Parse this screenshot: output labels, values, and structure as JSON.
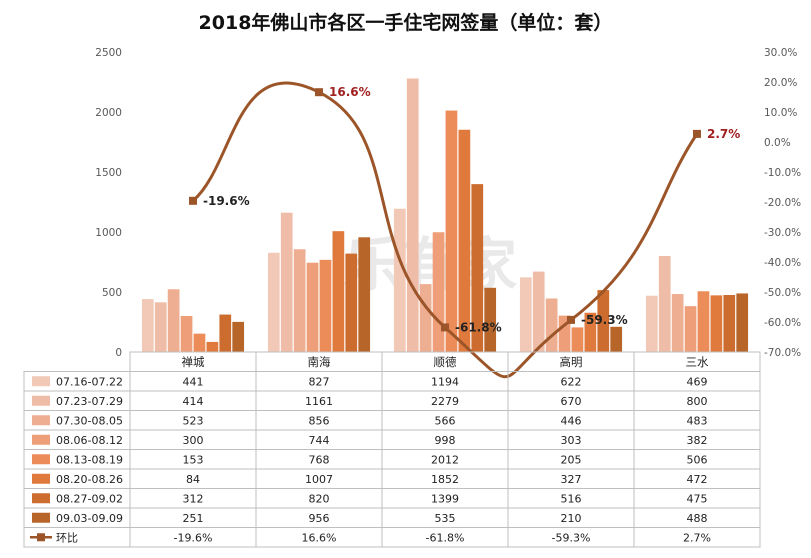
{
  "chart_data": {
    "type": "bar",
    "title": "2018年佛山市各区一手住宅网签量（单位：套）",
    "categories": [
      "禅城",
      "南海",
      "顺德",
      "高明",
      "三水"
    ],
    "y_left": {
      "ticks": [
        "0",
        "500",
        "1000",
        "1500",
        "2000",
        "2500"
      ],
      "ylim": [
        0,
        2500
      ]
    },
    "y_right": {
      "ticks": [
        "-70.0%",
        "-60.0%",
        "-50.0%",
        "-40.0%",
        "-30.0%",
        "-20.0%",
        "-10.0%",
        "0.0%",
        "10.0%",
        "20.0%",
        "30.0%"
      ],
      "ylim": [
        -70,
        30
      ]
    },
    "series": [
      {
        "name": "07.16-07.22",
        "color": "#f2c9b7",
        "values": [
          441,
          827,
          1194,
          622,
          469
        ]
      },
      {
        "name": "07.23-07.29",
        "color": "#efbca7",
        "values": [
          414,
          1161,
          2279,
          670,
          800
        ]
      },
      {
        "name": "07.30-08.05",
        "color": "#eeae92",
        "values": [
          523,
          856,
          566,
          446,
          483
        ]
      },
      {
        "name": "08.06-08.12",
        "color": "#ee9e78",
        "values": [
          300,
          744,
          998,
          303,
          382
        ]
      },
      {
        "name": "08.13-08.19",
        "color": "#ec8c58",
        "values": [
          153,
          768,
          2012,
          205,
          506
        ]
      },
      {
        "name": "08.20-08.26",
        "color": "#e07a3c",
        "values": [
          84,
          1007,
          1852,
          327,
          472
        ]
      },
      {
        "name": "08.27-09.02",
        "color": "#cc6c2f",
        "values": [
          312,
          820,
          1399,
          516,
          475
        ]
      },
      {
        "name": "09.03-09.09",
        "color": "#b8652a",
        "values": [
          251,
          956,
          535,
          210,
          488
        ]
      }
    ],
    "line_series": {
      "name": "环比",
      "color": "#9c5528",
      "values": [
        -19.6,
        16.6,
        -61.8,
        -59.3,
        2.7
      ],
      "labels": [
        "-19.6%",
        "16.6%",
        "-61.8%",
        "-59.3%",
        "2.7%"
      ],
      "label_colors": [
        "#222222",
        "#a12020",
        "#222222",
        "#222222",
        "#a12020"
      ]
    },
    "legend_placement": "table-below",
    "grid": false
  },
  "watermark": "乐有家"
}
